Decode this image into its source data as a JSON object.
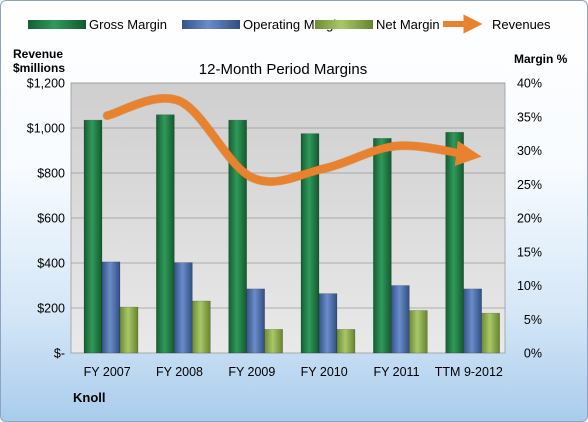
{
  "chart_data": {
    "type": "bar",
    "title": "12-Month Period Margins",
    "company": "Knoll",
    "categories": [
      "FY 2007",
      "FY 2008",
      "FY 2009",
      "FY 2010",
      "FY 2011",
      "TTM 9-2012"
    ],
    "series": [
      {
        "name": "Gross Margin",
        "axis": "right",
        "unit": "percent",
        "values": [
          34.5,
          35.3,
          34.5,
          32.5,
          31.8,
          32.7
        ]
      },
      {
        "name": "Operating Margin",
        "axis": "right",
        "unit": "percent",
        "values": [
          13.5,
          13.4,
          9.5,
          8.8,
          10.0,
          9.5
        ]
      },
      {
        "name": "Net Margin",
        "axis": "right",
        "unit": "percent",
        "values": [
          6.8,
          7.7,
          3.5,
          3.5,
          6.3,
          5.9
        ]
      },
      {
        "name": "Revenues",
        "axis": "left",
        "type": "line",
        "values": [
          1055,
          1120,
          780,
          820,
          920,
          880
        ]
      }
    ],
    "ylabel_left_line1": "Revenue",
    "ylabel_left_line2": "$millions",
    "ylabel_right": "Margin %",
    "ylim_left": [
      0,
      1200
    ],
    "ylim_right": [
      0,
      40
    ],
    "left_ticks": [
      "$-",
      "$200",
      "$400",
      "$600",
      "$800",
      "$1,000",
      "$1,200"
    ],
    "right_ticks": [
      "0%",
      "5%",
      "10%",
      "15%",
      "20%",
      "25%",
      "30%",
      "35%",
      "40%"
    ],
    "legend_position": "top",
    "grid": true,
    "colors": {
      "gross": "#1e7f47",
      "operating": "#4a70b0",
      "net": "#8db04a",
      "revenues": "#e8822f"
    }
  }
}
